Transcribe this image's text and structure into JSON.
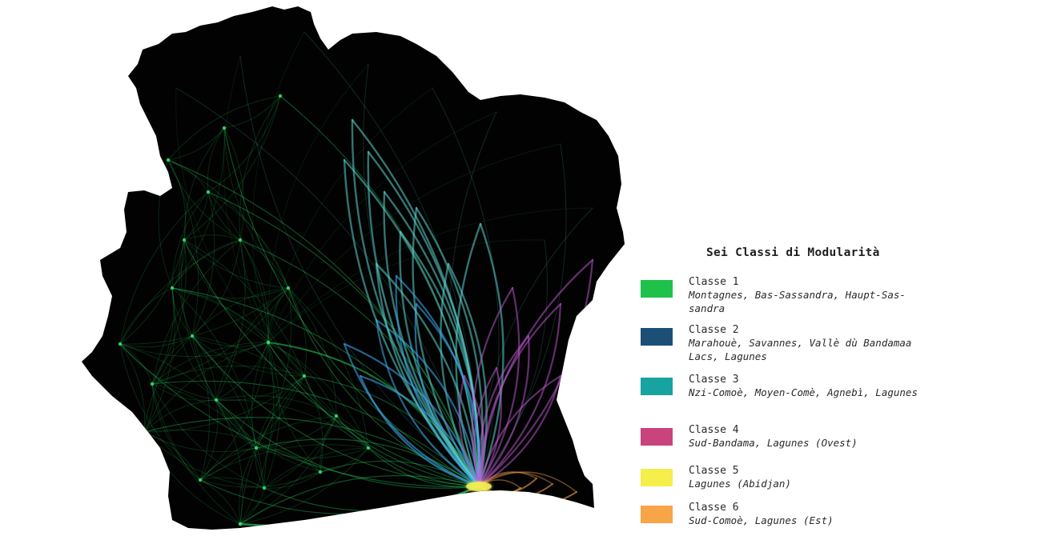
{
  "legend": {
    "title": "Sei Classi di Modularità",
    "items": [
      {
        "label": "Classe 1",
        "regions": "Montagnes, Bas-Sassandra, Haupt-Sas-sandra",
        "color": "#1ec24b"
      },
      {
        "label": "Classe 2",
        "regions": "Marahouè, Savannes, Vallè dù Bandamaa Lacs, Lagunes",
        "color": "#1b4f76"
      },
      {
        "label": "Classe 3",
        "regions": "Nzi-Comoè, Moyen-Comè, Agnebì, Lagunes",
        "color": "#17a3a0"
      },
      {
        "label": "Classe 4",
        "regions": "Sud-Bandama, Lagunes (Ovest)",
        "color": "#c9437c"
      },
      {
        "label": "Classe 5",
        "regions": "Lagunes (Abidjan)",
        "color": "#f6ee4a"
      },
      {
        "label": "Classe 6",
        "regions": "Sud-Comoè, Lagunes (Est)",
        "color": "#f7a546"
      }
    ]
  },
  "map": {
    "background_color": "#020202",
    "flow_colors": [
      "#2fe06a",
      "#3aa6e8",
      "#5cd6cf",
      "#c45bd6",
      "#f2ee55",
      "#f5a04a"
    ]
  }
}
